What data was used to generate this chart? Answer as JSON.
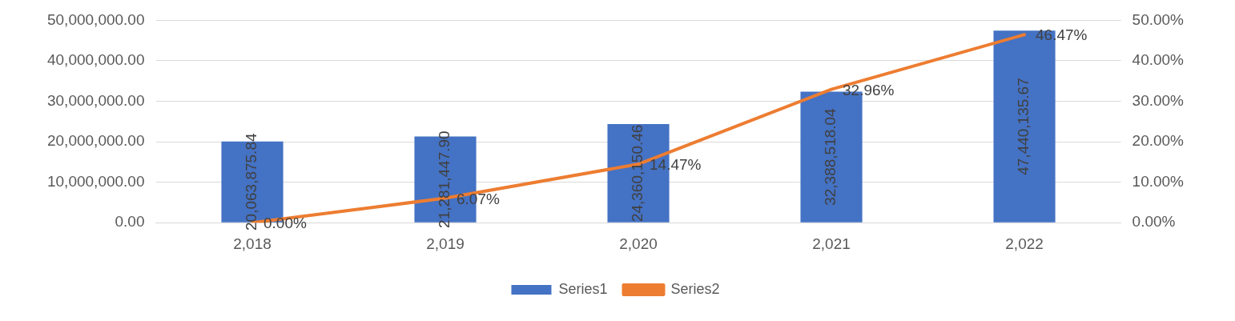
{
  "chart_data": {
    "type": "bar",
    "categories": [
      "2,018",
      "2,019",
      "2,020",
      "2,021",
      "2,022"
    ],
    "series": [
      {
        "name": "Series1",
        "color": "#4472c4",
        "values": [
          20063875.84,
          21281447.9,
          24360150.46,
          32388518.04,
          47440135.67
        ],
        "value_labels": [
          "20,063,875.84",
          "21,281,447.90",
          "24,360,150.46",
          "32,388,518.04",
          "47,440,135.67"
        ]
      },
      {
        "name": "Series2",
        "type": "line",
        "axis": "y2",
        "color": "#ed7d31",
        "values": [
          0,
          6.07,
          14.47,
          32.96,
          46.47
        ],
        "value_labels": [
          "0.00%",
          "6.07%",
          "14.47%",
          "32.96%",
          "46.47%"
        ]
      }
    ],
    "ylim": [
      0,
      50000000
    ],
    "yticks": [
      {
        "value": 0,
        "label": "0.00"
      },
      {
        "value": 10000000,
        "label": "10,000,000.00"
      },
      {
        "value": 20000000,
        "label": "20,000,000.00"
      },
      {
        "value": 30000000,
        "label": "30,000,000.00"
      },
      {
        "value": 40000000,
        "label": "40,000,000.00"
      },
      {
        "value": 50000000,
        "label": "50,000,000.00"
      }
    ],
    "y2lim": [
      0,
      50
    ],
    "y2ticks": [
      {
        "value": 0,
        "label": "0.00%"
      },
      {
        "value": 10,
        "label": "10.00%"
      },
      {
        "value": 20,
        "label": "20.00%"
      },
      {
        "value": 30,
        "label": "30.00%"
      },
      {
        "value": 40,
        "label": "40.00%"
      },
      {
        "value": 50,
        "label": "50.00%"
      }
    ],
    "grid": "y",
    "legend": "bottom",
    "marker": "none",
    "line_style": "solid"
  }
}
